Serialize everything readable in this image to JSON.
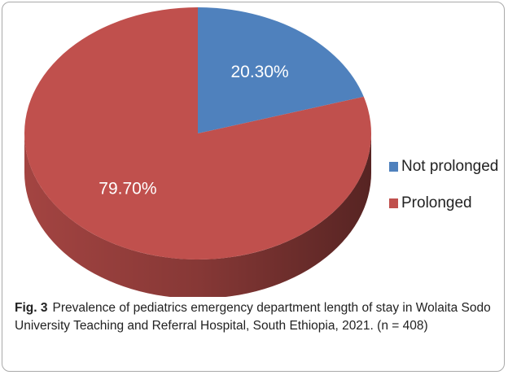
{
  "chart_data": {
    "type": "pie3d",
    "categories": [
      "Not prolonged",
      "Prolonged"
    ],
    "values": [
      20.3,
      79.7
    ],
    "value_labels": [
      "20.30%",
      "79.70%"
    ],
    "colors": [
      "#4f81bd",
      "#c0504d"
    ],
    "legend": "right",
    "caption_label": "Fig. 3",
    "caption": "Prevalence of pediatrics emergency department length of stay in Wolaita Sodo University Teaching and Referral Hospital, South Ethiopia, 2021. (n = 408)"
  }
}
